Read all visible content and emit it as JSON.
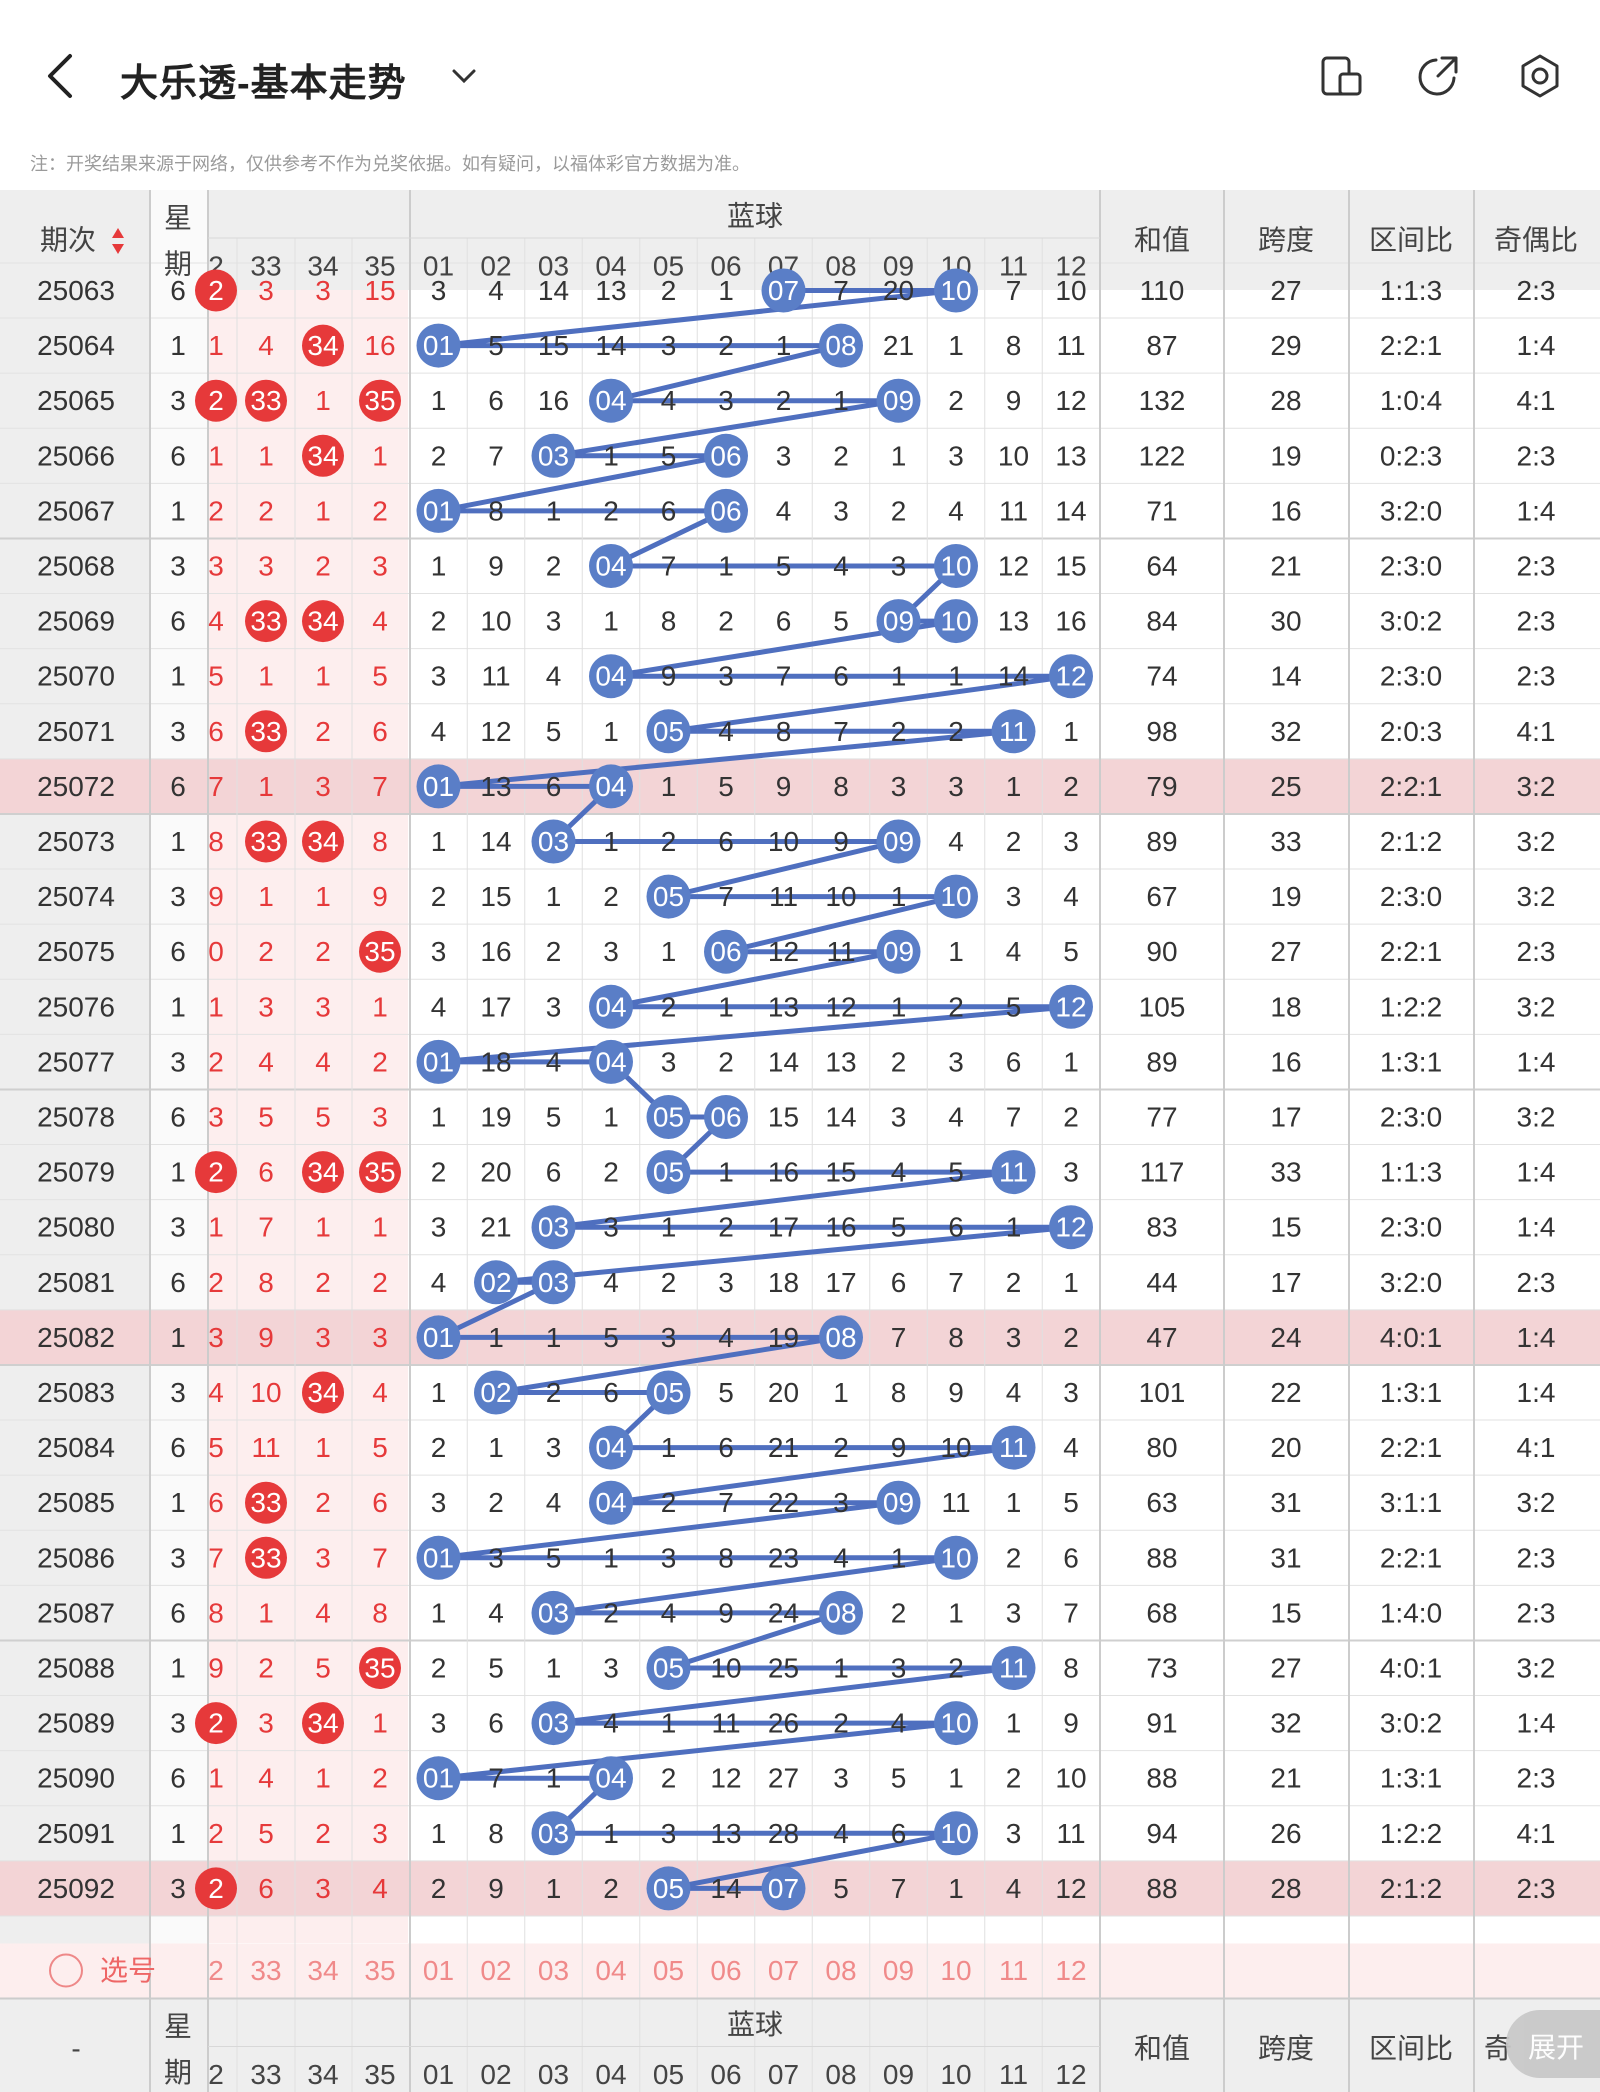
{
  "appbar": {
    "title": "大乐透-基本走势",
    "icons": [
      "back-arrow-icon",
      "dropdown-chevron-icon",
      "device-layout-icon",
      "share-icon",
      "settings-icon"
    ]
  },
  "notice": "注：开奖结果来源于网络，仅供参考不作为兑奖依据。如有疑问，以福体彩官方数据为准。",
  "header": {
    "period": "期次",
    "weekday_top": "星",
    "weekday_bottom": "期",
    "blue_group": "蓝球",
    "sum": "和值",
    "span": "跨度",
    "zone": "区间比",
    "oddeven": "奇偶比",
    "red_cols": [
      "2",
      "33",
      "34",
      "35"
    ],
    "blue_cols": [
      "01",
      "02",
      "03",
      "04",
      "05",
      "06",
      "07",
      "08",
      "09",
      "10",
      "11",
      "12"
    ]
  },
  "footer": {
    "select_label": "选号",
    "dash": "-",
    "oddeven_partial": "奇",
    "expand": "展开"
  },
  "colors": {
    "red": "#e6393a",
    "blue": "#5a7ec7",
    "highlight_row": "#f3d4d6",
    "pink_bg": "#fdeeee",
    "line_blue": "#4f6fbf"
  },
  "rows": [
    {
      "p": "25063",
      "w": "6",
      "r": [
        "2",
        "3",
        "3",
        "15"
      ],
      "rb": [
        0
      ],
      "b": [
        "3",
        "4",
        "14",
        "13",
        "2",
        "1",
        "07",
        "7",
        "20",
        "10",
        "7",
        "10"
      ],
      "hits": [
        6,
        9
      ],
      "sum": "110",
      "span": "27",
      "zone": "1:1:3",
      "oe": "2:3",
      "hl": false
    },
    {
      "p": "25064",
      "w": "1",
      "r": [
        "1",
        "4",
        "34",
        "16"
      ],
      "rb": [
        2
      ],
      "b": [
        "01",
        "5",
        "15",
        "14",
        "3",
        "2",
        "1",
        "08",
        "21",
        "1",
        "8",
        "11"
      ],
      "hits": [
        0,
        7
      ],
      "sum": "87",
      "span": "29",
      "zone": "2:2:1",
      "oe": "1:4",
      "hl": false
    },
    {
      "p": "25065",
      "w": "3",
      "r": [
        "2",
        "33",
        "1",
        "35"
      ],
      "rb": [
        0,
        1,
        3
      ],
      "b": [
        "1",
        "6",
        "16",
        "04",
        "4",
        "3",
        "2",
        "1",
        "09",
        "2",
        "9",
        "12"
      ],
      "hits": [
        3,
        8
      ],
      "sum": "132",
      "span": "28",
      "zone": "1:0:4",
      "oe": "4:1",
      "hl": false
    },
    {
      "p": "25066",
      "w": "6",
      "r": [
        "1",
        "1",
        "34",
        "1"
      ],
      "rb": [
        2
      ],
      "b": [
        "2",
        "7",
        "03",
        "1",
        "5",
        "06",
        "3",
        "2",
        "1",
        "3",
        "10",
        "13"
      ],
      "hits": [
        2,
        5
      ],
      "sum": "122",
      "span": "19",
      "zone": "0:2:3",
      "oe": "2:3",
      "hl": false
    },
    {
      "p": "25067",
      "w": "1",
      "r": [
        "2",
        "2",
        "1",
        "2"
      ],
      "rb": [],
      "b": [
        "01",
        "8",
        "1",
        "2",
        "6",
        "06",
        "4",
        "3",
        "2",
        "4",
        "11",
        "14"
      ],
      "hits": [
        0,
        5
      ],
      "sum": "71",
      "span": "16",
      "zone": "3:2:0",
      "oe": "1:4",
      "hl": false
    },
    {
      "p": "25068",
      "w": "3",
      "r": [
        "3",
        "3",
        "2",
        "3"
      ],
      "rb": [],
      "b": [
        "1",
        "9",
        "2",
        "04",
        "7",
        "1",
        "5",
        "4",
        "3",
        "10",
        "12",
        "15"
      ],
      "hits": [
        3,
        9
      ],
      "sum": "64",
      "span": "21",
      "zone": "2:3:0",
      "oe": "2:3",
      "hl": false
    },
    {
      "p": "25069",
      "w": "6",
      "r": [
        "4",
        "33",
        "34",
        "4"
      ],
      "rb": [
        1,
        2
      ],
      "b": [
        "2",
        "10",
        "3",
        "1",
        "8",
        "2",
        "6",
        "5",
        "09",
        "10",
        "13",
        "16"
      ],
      "hits": [
        8,
        9
      ],
      "sum": "84",
      "span": "30",
      "zone": "3:0:2",
      "oe": "2:3",
      "hl": false
    },
    {
      "p": "25070",
      "w": "1",
      "r": [
        "5",
        "1",
        "1",
        "5"
      ],
      "rb": [],
      "b": [
        "3",
        "11",
        "4",
        "04",
        "9",
        "3",
        "7",
        "6",
        "1",
        "1",
        "14",
        "12"
      ],
      "hits": [
        3,
        11
      ],
      "sum": "74",
      "span": "14",
      "zone": "2:3:0",
      "oe": "2:3",
      "hl": false
    },
    {
      "p": "25071",
      "w": "3",
      "r": [
        "6",
        "33",
        "2",
        "6"
      ],
      "rb": [
        1
      ],
      "b": [
        "4",
        "12",
        "5",
        "1",
        "05",
        "4",
        "8",
        "7",
        "2",
        "2",
        "11",
        "1"
      ],
      "hits": [
        4,
        10
      ],
      "sum": "98",
      "span": "32",
      "zone": "2:0:3",
      "oe": "4:1",
      "hl": false
    },
    {
      "p": "25072",
      "w": "6",
      "r": [
        "7",
        "1",
        "3",
        "7"
      ],
      "rb": [],
      "b": [
        "01",
        "13",
        "6",
        "04",
        "1",
        "5",
        "9",
        "8",
        "3",
        "3",
        "1",
        "2"
      ],
      "hits": [
        0,
        3
      ],
      "sum": "79",
      "span": "25",
      "zone": "2:2:1",
      "oe": "3:2",
      "hl": true
    },
    {
      "p": "25073",
      "w": "1",
      "r": [
        "8",
        "33",
        "34",
        "8"
      ],
      "rb": [
        1,
        2
      ],
      "b": [
        "1",
        "14",
        "03",
        "1",
        "2",
        "6",
        "10",
        "9",
        "09",
        "4",
        "2",
        "3"
      ],
      "hits": [
        2,
        8
      ],
      "sum": "89",
      "span": "33",
      "zone": "2:1:2",
      "oe": "3:2",
      "hl": false
    },
    {
      "p": "25074",
      "w": "3",
      "r": [
        "9",
        "1",
        "1",
        "9"
      ],
      "rb": [],
      "b": [
        "2",
        "15",
        "1",
        "2",
        "05",
        "7",
        "11",
        "10",
        "1",
        "10",
        "3",
        "4"
      ],
      "hits": [
        4,
        9
      ],
      "sum": "67",
      "span": "19",
      "zone": "2:3:0",
      "oe": "3:2",
      "hl": false
    },
    {
      "p": "25075",
      "w": "6",
      "r": [
        "0",
        "2",
        "2",
        "35"
      ],
      "rb": [
        3
      ],
      "b": [
        "3",
        "16",
        "2",
        "3",
        "1",
        "06",
        "12",
        "11",
        "09",
        "1",
        "4",
        "5"
      ],
      "hits": [
        5,
        8
      ],
      "sum": "90",
      "span": "27",
      "zone": "2:2:1",
      "oe": "2:3",
      "hl": false
    },
    {
      "p": "25076",
      "w": "1",
      "r": [
        "1",
        "3",
        "3",
        "1"
      ],
      "rb": [],
      "b": [
        "4",
        "17",
        "3",
        "04",
        "2",
        "1",
        "13",
        "12",
        "1",
        "2",
        "5",
        "12"
      ],
      "hits": [
        3,
        11
      ],
      "sum": "105",
      "span": "18",
      "zone": "1:2:2",
      "oe": "3:2",
      "hl": false
    },
    {
      "p": "25077",
      "w": "3",
      "r": [
        "2",
        "4",
        "4",
        "2"
      ],
      "rb": [],
      "b": [
        "01",
        "18",
        "4",
        "04",
        "3",
        "2",
        "14",
        "13",
        "2",
        "3",
        "6",
        "1"
      ],
      "hits": [
        0,
        3
      ],
      "sum": "89",
      "span": "16",
      "zone": "1:3:1",
      "oe": "1:4",
      "hl": false
    },
    {
      "p": "25078",
      "w": "6",
      "r": [
        "3",
        "5",
        "5",
        "3"
      ],
      "rb": [],
      "b": [
        "1",
        "19",
        "5",
        "1",
        "05",
        "06",
        "15",
        "14",
        "3",
        "4",
        "7",
        "2"
      ],
      "hits": [
        4,
        5
      ],
      "sum": "77",
      "span": "17",
      "zone": "2:3:0",
      "oe": "3:2",
      "hl": false
    },
    {
      "p": "25079",
      "w": "1",
      "r": [
        "2",
        "6",
        "34",
        "35"
      ],
      "rb": [
        0,
        2,
        3
      ],
      "b": [
        "2",
        "20",
        "6",
        "2",
        "05",
        "1",
        "16",
        "15",
        "4",
        "5",
        "11",
        "3"
      ],
      "hits": [
        4,
        10
      ],
      "sum": "117",
      "span": "33",
      "zone": "1:1:3",
      "oe": "1:4",
      "hl": false
    },
    {
      "p": "25080",
      "w": "3",
      "r": [
        "1",
        "7",
        "1",
        "1"
      ],
      "rb": [],
      "b": [
        "3",
        "21",
        "03",
        "3",
        "1",
        "2",
        "17",
        "16",
        "5",
        "6",
        "1",
        "12"
      ],
      "hits": [
        2,
        11
      ],
      "sum": "83",
      "span": "15",
      "zone": "2:3:0",
      "oe": "1:4",
      "hl": false
    },
    {
      "p": "25081",
      "w": "6",
      "r": [
        "2",
        "8",
        "2",
        "2"
      ],
      "rb": [],
      "b": [
        "4",
        "02",
        "03",
        "4",
        "2",
        "3",
        "18",
        "17",
        "6",
        "7",
        "2",
        "1"
      ],
      "hits": [
        1,
        2
      ],
      "sum": "44",
      "span": "17",
      "zone": "3:2:0",
      "oe": "2:3",
      "hl": false
    },
    {
      "p": "25082",
      "w": "1",
      "r": [
        "3",
        "9",
        "3",
        "3"
      ],
      "rb": [],
      "b": [
        "01",
        "1",
        "1",
        "5",
        "3",
        "4",
        "19",
        "08",
        "7",
        "8",
        "3",
        "2"
      ],
      "hits": [
        0,
        7
      ],
      "sum": "47",
      "span": "24",
      "zone": "4:0:1",
      "oe": "1:4",
      "hl": true
    },
    {
      "p": "25083",
      "w": "3",
      "r": [
        "4",
        "10",
        "34",
        "4"
      ],
      "rb": [
        2
      ],
      "b": [
        "1",
        "02",
        "2",
        "6",
        "05",
        "5",
        "20",
        "1",
        "8",
        "9",
        "4",
        "3"
      ],
      "hits": [
        1,
        4
      ],
      "sum": "101",
      "span": "22",
      "zone": "1:3:1",
      "oe": "1:4",
      "hl": false
    },
    {
      "p": "25084",
      "w": "6",
      "r": [
        "5",
        "11",
        "1",
        "5"
      ],
      "rb": [],
      "b": [
        "2",
        "1",
        "3",
        "04",
        "1",
        "6",
        "21",
        "2",
        "9",
        "10",
        "11",
        "4"
      ],
      "hits": [
        3,
        10
      ],
      "sum": "80",
      "span": "20",
      "zone": "2:2:1",
      "oe": "4:1",
      "hl": false
    },
    {
      "p": "25085",
      "w": "1",
      "r": [
        "6",
        "33",
        "2",
        "6"
      ],
      "rb": [
        1
      ],
      "b": [
        "3",
        "2",
        "4",
        "04",
        "2",
        "7",
        "22",
        "3",
        "09",
        "11",
        "1",
        "5"
      ],
      "hits": [
        3,
        8
      ],
      "sum": "63",
      "span": "31",
      "zone": "3:1:1",
      "oe": "3:2",
      "hl": false
    },
    {
      "p": "25086",
      "w": "3",
      "r": [
        "7",
        "33",
        "3",
        "7"
      ],
      "rb": [
        1
      ],
      "b": [
        "01",
        "3",
        "5",
        "1",
        "3",
        "8",
        "23",
        "4",
        "1",
        "10",
        "2",
        "6"
      ],
      "hits": [
        0,
        9
      ],
      "sum": "88",
      "span": "31",
      "zone": "2:2:1",
      "oe": "2:3",
      "hl": false
    },
    {
      "p": "25087",
      "w": "6",
      "r": [
        "8",
        "1",
        "4",
        "8"
      ],
      "rb": [],
      "b": [
        "1",
        "4",
        "03",
        "2",
        "4",
        "9",
        "24",
        "08",
        "2",
        "1",
        "3",
        "7"
      ],
      "hits": [
        2,
        7
      ],
      "sum": "68",
      "span": "15",
      "zone": "1:4:0",
      "oe": "2:3",
      "hl": false
    },
    {
      "p": "25088",
      "w": "1",
      "r": [
        "9",
        "2",
        "5",
        "35"
      ],
      "rb": [
        3
      ],
      "b": [
        "2",
        "5",
        "1",
        "3",
        "05",
        "10",
        "25",
        "1",
        "3",
        "2",
        "11",
        "8"
      ],
      "hits": [
        4,
        10
      ],
      "sum": "73",
      "span": "27",
      "zone": "4:0:1",
      "oe": "3:2",
      "hl": false
    },
    {
      "p": "25089",
      "w": "3",
      "r": [
        "2",
        "3",
        "34",
        "1"
      ],
      "rb": [
        0,
        2
      ],
      "b": [
        "3",
        "6",
        "03",
        "4",
        "1",
        "11",
        "26",
        "2",
        "4",
        "10",
        "1",
        "9"
      ],
      "hits": [
        2,
        9
      ],
      "sum": "91",
      "span": "32",
      "zone": "3:0:2",
      "oe": "1:4",
      "hl": false
    },
    {
      "p": "25090",
      "w": "6",
      "r": [
        "1",
        "4",
        "1",
        "2"
      ],
      "rb": [],
      "b": [
        "01",
        "7",
        "1",
        "04",
        "2",
        "12",
        "27",
        "3",
        "5",
        "1",
        "2",
        "10"
      ],
      "hits": [
        0,
        3
      ],
      "sum": "88",
      "span": "21",
      "zone": "1:3:1",
      "oe": "2:3",
      "hl": false
    },
    {
      "p": "25091",
      "w": "1",
      "r": [
        "2",
        "5",
        "2",
        "3"
      ],
      "rb": [],
      "b": [
        "1",
        "8",
        "03",
        "1",
        "3",
        "13",
        "28",
        "4",
        "6",
        "10",
        "3",
        "11"
      ],
      "hits": [
        2,
        9
      ],
      "sum": "94",
      "span": "26",
      "zone": "1:2:2",
      "oe": "4:1",
      "hl": false
    },
    {
      "p": "25092",
      "w": "3",
      "r": [
        "2",
        "6",
        "3",
        "4"
      ],
      "rb": [
        0
      ],
      "b": [
        "2",
        "9",
        "1",
        "2",
        "05",
        "14",
        "07",
        "5",
        "7",
        "1",
        "4",
        "12"
      ],
      "hits": [
        4,
        6
      ],
      "sum": "88",
      "span": "28",
      "zone": "2:1:2",
      "oe": "2:3",
      "hl": true
    }
  ]
}
